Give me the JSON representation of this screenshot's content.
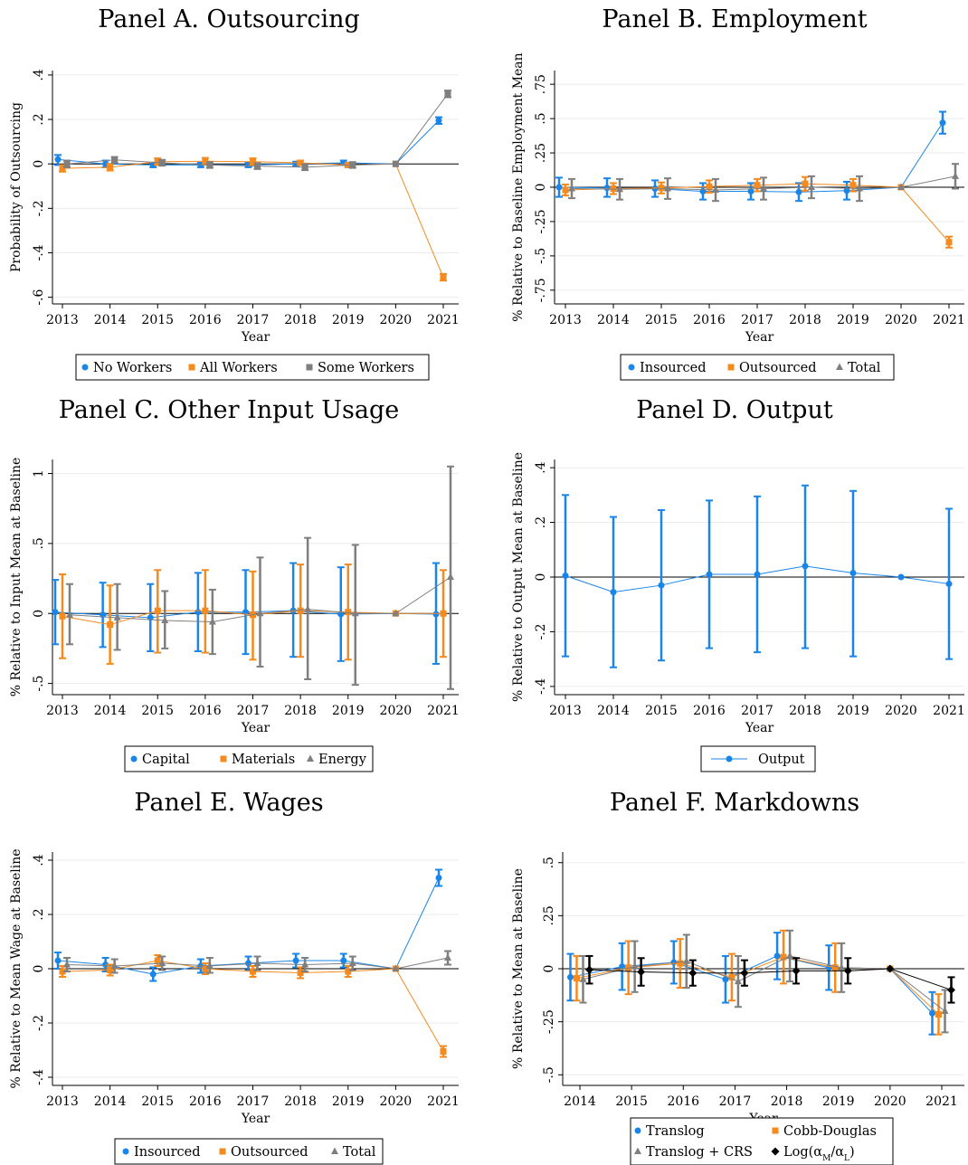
{
  "chart_data": [
    {
      "type": "line",
      "title": "Panel A. Outsourcing",
      "xlabel": "Year",
      "ylabel": "Probability of Outsourcing",
      "x": [
        2013,
        2014,
        2015,
        2016,
        2017,
        2018,
        2019,
        2020,
        2021
      ],
      "ylim": [
        -0.63,
        0.42
      ],
      "yticks": [
        -0.6,
        -0.4,
        -0.2,
        0,
        0.2,
        0.4
      ],
      "ytick_labels": [
        "-.6",
        "-.4",
        "-.2",
        "0",
        ".2",
        ".4"
      ],
      "grid": true,
      "legend": "bottom",
      "series": [
        {
          "name": "No Workers",
          "marker": "circle",
          "color": "#1a85e8",
          "values": [
            0.02,
            0.0,
            -0.005,
            -0.005,
            -0.005,
            0.0,
            0.005,
            0.0,
            0.195
          ],
          "ci_low": [
            -0.005,
            -0.015,
            -0.015,
            -0.015,
            -0.015,
            -0.01,
            -0.005,
            0.0,
            0.18
          ],
          "ci_high": [
            0.04,
            0.015,
            0.005,
            0.005,
            0.005,
            0.01,
            0.015,
            0.0,
            0.21
          ]
        },
        {
          "name": "All Workers",
          "marker": "square",
          "color": "#f58a1f",
          "values": [
            -0.02,
            -0.015,
            0.01,
            0.012,
            0.01,
            0.005,
            -0.005,
            0.0,
            -0.51
          ],
          "ci_low": [
            -0.035,
            -0.03,
            -0.005,
            -0.003,
            -0.005,
            -0.005,
            -0.015,
            0.0,
            -0.525
          ],
          "ci_high": [
            -0.005,
            0.0,
            0.025,
            0.027,
            0.025,
            0.015,
            0.005,
            0.0,
            -0.495
          ]
        },
        {
          "name": "Some Workers",
          "marker": "square",
          "color": "#7f7f7f",
          "values": [
            0.0,
            0.018,
            0.005,
            -0.005,
            -0.01,
            -0.015,
            -0.005,
            0.0,
            0.315
          ],
          "ci_low": [
            -0.015,
            0.005,
            -0.008,
            -0.018,
            -0.023,
            -0.028,
            -0.018,
            0.0,
            0.3
          ],
          "ci_high": [
            0.015,
            0.031,
            0.018,
            0.008,
            0.003,
            -0.002,
            0.008,
            0.0,
            0.33
          ]
        }
      ]
    },
    {
      "type": "line",
      "title": "Panel B. Employment",
      "xlabel": "Year",
      "ylabel": "% Relative to Baseline Employment Mean",
      "x": [
        2013,
        2014,
        2015,
        2016,
        2017,
        2018,
        2019,
        2020,
        2021
      ],
      "ylim": [
        -0.85,
        0.85
      ],
      "yticks": [
        -0.75,
        -0.5,
        -0.25,
        0,
        0.25,
        0.5,
        0.75
      ],
      "ytick_labels": [
        "-.75",
        "-.5",
        "-.25",
        "0",
        ".25",
        ".5",
        ".75"
      ],
      "grid": true,
      "legend": "bottom",
      "series": [
        {
          "name": "Insourced",
          "marker": "circle",
          "color": "#1a85e8",
          "values": [
            0.0,
            -0.005,
            -0.01,
            -0.03,
            -0.03,
            -0.035,
            -0.025,
            0.0,
            0.47
          ],
          "ci_low": [
            -0.07,
            -0.07,
            -0.07,
            -0.09,
            -0.09,
            -0.1,
            -0.09,
            0.0,
            0.39
          ],
          "ci_high": [
            0.07,
            0.065,
            0.05,
            0.03,
            0.03,
            0.03,
            0.04,
            0.0,
            0.55
          ]
        },
        {
          "name": "Outsourced",
          "marker": "square",
          "color": "#f58a1f",
          "values": [
            -0.02,
            -0.01,
            -0.005,
            0.005,
            0.015,
            0.025,
            0.015,
            0.0,
            -0.4
          ],
          "ci_low": [
            -0.06,
            -0.05,
            -0.045,
            -0.04,
            -0.03,
            -0.025,
            -0.03,
            0.0,
            -0.44
          ],
          "ci_high": [
            0.02,
            0.03,
            0.035,
            0.05,
            0.06,
            0.075,
            0.06,
            0.0,
            -0.36
          ]
        },
        {
          "name": "Total",
          "marker": "triangle",
          "color": "#7f7f7f",
          "values": [
            -0.01,
            -0.015,
            -0.01,
            -0.02,
            -0.01,
            0.0,
            -0.01,
            0.0,
            0.08
          ],
          "ci_low": [
            -0.08,
            -0.09,
            -0.085,
            -0.1,
            -0.09,
            -0.08,
            -0.1,
            0.0,
            -0.01
          ],
          "ci_high": [
            0.06,
            0.06,
            0.065,
            0.06,
            0.07,
            0.08,
            0.08,
            0.0,
            0.17
          ]
        }
      ]
    },
    {
      "type": "line",
      "title": "Panel C. Other Input Usage",
      "xlabel": "Year",
      "ylabel": "% Relative to Input Mean at Baseline",
      "x": [
        2013,
        2014,
        2015,
        2016,
        2017,
        2018,
        2019,
        2020,
        2021
      ],
      "ylim": [
        -0.58,
        1.1
      ],
      "yticks": [
        -0.5,
        0,
        0.5,
        1
      ],
      "ytick_labels": [
        "-.5",
        "0",
        ".5",
        "1"
      ],
      "grid": true,
      "legend": "bottom",
      "series": [
        {
          "name": "Capital",
          "marker": "circle",
          "color": "#1a85e8",
          "values": [
            0.01,
            -0.01,
            -0.03,
            0.01,
            0.01,
            0.02,
            -0.005,
            0.0,
            -0.005
          ],
          "ci_low": [
            -0.22,
            -0.24,
            -0.27,
            -0.27,
            -0.29,
            -0.31,
            -0.34,
            0.0,
            -0.36
          ],
          "ci_high": [
            0.24,
            0.22,
            0.21,
            0.29,
            0.31,
            0.36,
            0.33,
            0.0,
            0.36
          ]
        },
        {
          "name": "Materials",
          "marker": "square",
          "color": "#f58a1f",
          "values": [
            -0.02,
            -0.08,
            0.02,
            0.02,
            -0.01,
            0.02,
            0.01,
            0.0,
            0.0
          ],
          "ci_low": [
            -0.32,
            -0.36,
            -0.28,
            -0.28,
            -0.33,
            -0.31,
            -0.33,
            0.0,
            -0.31
          ],
          "ci_high": [
            0.28,
            0.2,
            0.31,
            0.31,
            0.3,
            0.35,
            0.35,
            0.0,
            0.31
          ]
        },
        {
          "name": "Energy",
          "marker": "triangle",
          "color": "#7f7f7f",
          "values": [
            -0.01,
            -0.03,
            -0.05,
            -0.06,
            0.0,
            0.03,
            0.0,
            0.0,
            0.26
          ],
          "ci_low": [
            -0.22,
            -0.26,
            -0.25,
            -0.29,
            -0.38,
            -0.47,
            -0.51,
            0.0,
            -0.54
          ],
          "ci_high": [
            0.21,
            0.21,
            0.16,
            0.17,
            0.4,
            0.54,
            0.49,
            0.0,
            1.05
          ]
        }
      ]
    },
    {
      "type": "line",
      "title": "Panel D. Output",
      "xlabel": "Year",
      "ylabel": "% Relative to Output Mean at Baseline",
      "x": [
        2013,
        2014,
        2015,
        2016,
        2017,
        2018,
        2019,
        2020,
        2021
      ],
      "ylim": [
        -0.43,
        0.43
      ],
      "yticks": [
        -0.4,
        -0.2,
        0,
        0.2,
        0.4
      ],
      "ytick_labels": [
        "-.4",
        "-.2",
        "0",
        ".2",
        ".4"
      ],
      "grid": true,
      "legend": "bottom",
      "series": [
        {
          "name": "Output",
          "marker": "circle",
          "color": "#1a85e8",
          "values": [
            0.005,
            -0.055,
            -0.03,
            0.01,
            0.01,
            0.04,
            0.015,
            0.0,
            -0.025
          ],
          "ci_low": [
            -0.29,
            -0.33,
            -0.305,
            -0.26,
            -0.275,
            -0.26,
            -0.29,
            0.0,
            -0.3
          ],
          "ci_high": [
            0.3,
            0.22,
            0.245,
            0.28,
            0.295,
            0.335,
            0.315,
            0.0,
            0.25
          ]
        }
      ]
    },
    {
      "type": "line",
      "title": "Panel E. Wages",
      "xlabel": "Year",
      "ylabel": "% Relative to Mean Wage at Baseline",
      "x": [
        2013,
        2014,
        2015,
        2016,
        2017,
        2018,
        2019,
        2020,
        2021
      ],
      "ylim": [
        -0.43,
        0.43
      ],
      "yticks": [
        -0.4,
        -0.2,
        0,
        0.2,
        0.4
      ],
      "ytick_labels": [
        "-.4",
        "-.2",
        "0",
        ".2",
        ".4"
      ],
      "grid": true,
      "legend": "bottom",
      "series": [
        {
          "name": "Insourced",
          "marker": "circle",
          "color": "#1a85e8",
          "values": [
            0.03,
            0.015,
            -0.02,
            0.01,
            0.02,
            0.03,
            0.03,
            0.0,
            0.335
          ],
          "ci_low": [
            0.0,
            -0.01,
            -0.045,
            -0.015,
            -0.005,
            0.005,
            0.005,
            0.0,
            0.305
          ],
          "ci_high": [
            0.06,
            0.04,
            0.005,
            0.035,
            0.045,
            0.055,
            0.055,
            0.0,
            0.365
          ]
        },
        {
          "name": "Outsourced",
          "marker": "square",
          "color": "#f58a1f",
          "values": [
            -0.01,
            -0.005,
            0.03,
            0.0,
            -0.01,
            -0.015,
            -0.01,
            0.0,
            -0.305
          ],
          "ci_low": [
            -0.03,
            -0.025,
            0.01,
            -0.02,
            -0.03,
            -0.035,
            -0.03,
            0.0,
            -0.325
          ],
          "ci_high": [
            0.01,
            0.015,
            0.05,
            0.02,
            0.01,
            0.005,
            0.01,
            0.0,
            -0.285
          ]
        },
        {
          "name": "Total",
          "marker": "triangle",
          "color": "#7f7f7f",
          "values": [
            0.015,
            0.01,
            0.02,
            0.01,
            0.02,
            0.015,
            0.02,
            0.0,
            0.04
          ],
          "ci_low": [
            -0.01,
            -0.015,
            -0.005,
            -0.015,
            -0.005,
            -0.01,
            -0.005,
            0.0,
            0.015
          ],
          "ci_high": [
            0.04,
            0.035,
            0.045,
            0.04,
            0.045,
            0.04,
            0.045,
            0.0,
            0.065
          ]
        }
      ]
    },
    {
      "type": "line",
      "title": "Panel F. Markdowns",
      "xlabel": "Year",
      "ylabel": "% Relative to Mean at Baseline",
      "x": [
        2014,
        2015,
        2016,
        2017,
        2018,
        2019,
        2020,
        2021
      ],
      "ylim": [
        -0.55,
        0.55
      ],
      "yticks": [
        -0.5,
        -0.25,
        0,
        0.25,
        0.5
      ],
      "ytick_labels": [
        "-.5",
        "-.25",
        "0",
        ".25",
        ".5"
      ],
      "grid": true,
      "legend": "bottom",
      "series": [
        {
          "name": "Translog",
          "marker": "circle",
          "color": "#1a85e8",
          "values": [
            -0.04,
            0.01,
            0.03,
            -0.05,
            0.06,
            0.005,
            0.0,
            -0.21
          ],
          "ci_low": [
            -0.15,
            -0.1,
            -0.07,
            -0.16,
            -0.05,
            -0.1,
            0.0,
            -0.31
          ],
          "ci_high": [
            0.07,
            0.12,
            0.13,
            0.06,
            0.17,
            0.11,
            0.0,
            -0.11
          ]
        },
        {
          "name": "Cobb-Douglas",
          "marker": "square",
          "color": "#f58a1f",
          "values": [
            -0.045,
            0.005,
            0.025,
            -0.04,
            0.055,
            0.005,
            0.0,
            -0.215
          ],
          "ci_low": [
            -0.15,
            -0.12,
            -0.09,
            -0.15,
            -0.07,
            -0.11,
            0.0,
            -0.31
          ],
          "ci_high": [
            0.06,
            0.13,
            0.14,
            0.07,
            0.18,
            0.12,
            0.0,
            -0.12
          ]
        },
        {
          "name": "Translog + CRS",
          "marker": "triangle",
          "color": "#7f7f7f",
          "values": [
            -0.05,
            0.01,
            0.035,
            -0.06,
            0.06,
            0.005,
            0.0,
            -0.2
          ],
          "ci_low": [
            -0.16,
            -0.11,
            -0.09,
            -0.18,
            -0.06,
            -0.11,
            0.0,
            -0.3
          ],
          "ci_high": [
            0.06,
            0.13,
            0.16,
            0.06,
            0.18,
            0.12,
            0.0,
            -0.1
          ]
        },
        {
          "name": "Log(α_M/α_L)",
          "marker": "diamond",
          "color": "#000000",
          "values": [
            -0.005,
            -0.015,
            -0.02,
            -0.02,
            -0.01,
            -0.01,
            0.0,
            -0.1
          ],
          "ci_low": [
            -0.07,
            -0.08,
            -0.08,
            -0.08,
            -0.07,
            -0.07,
            0.0,
            -0.16
          ],
          "ci_high": [
            0.06,
            0.05,
            0.04,
            0.04,
            0.05,
            0.05,
            0.0,
            -0.04
          ]
        }
      ]
    }
  ]
}
